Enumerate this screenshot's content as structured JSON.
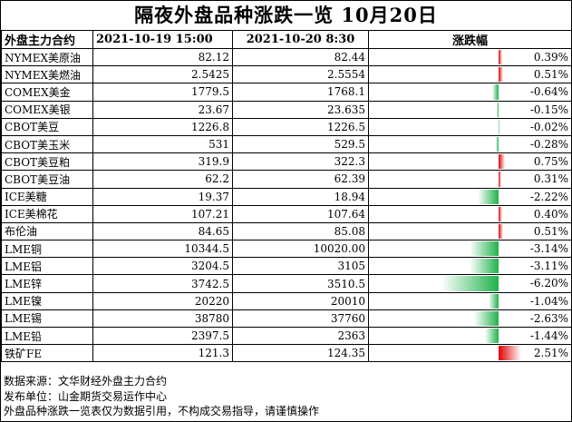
{
  "title": "隔夜外盘品种涨跌一览 10月20日",
  "header": {
    "col_name": "外盘主力合约",
    "col_prev": "2021-10-19 15:00",
    "col_curr": "2021-10-20 8:30",
    "col_change": "涨跌幅"
  },
  "rows": [
    {
      "name": "NYMEX美原油",
      "prev": "82.12",
      "curr": "82.44",
      "change": "0.39%",
      "value": 0.39
    },
    {
      "name": "NYMEX美燃油",
      "prev": "2.5425",
      "curr": "2.5554",
      "change": "0.51%",
      "value": 0.51
    },
    {
      "name": "COMEX美金",
      "prev": "1779.5",
      "curr": "1768.1",
      "change": "-0.64%",
      "value": -0.64
    },
    {
      "name": "COMEX美银",
      "prev": "23.67",
      "curr": "23.635",
      "change": "-0.15%",
      "value": -0.15
    },
    {
      "name": "CBOT美豆",
      "prev": "1226.8",
      "curr": "1226.5",
      "change": "-0.02%",
      "value": -0.02
    },
    {
      "name": "CBOT美玉米",
      "prev": "531",
      "curr": "529.5",
      "change": "-0.28%",
      "value": -0.28
    },
    {
      "name": "CBOT美豆粕",
      "prev": "319.9",
      "curr": "322.3",
      "change": "0.75%",
      "value": 0.75
    },
    {
      "name": "CBOT美豆油",
      "prev": "62.2",
      "curr": "62.39",
      "change": "0.31%",
      "value": 0.31
    },
    {
      "name": "ICE美糖",
      "prev": "19.37",
      "curr": "18.94",
      "change": "-2.22%",
      "value": -2.22
    },
    {
      "name": "ICE美棉花",
      "prev": "107.21",
      "curr": "107.64",
      "change": "0.40%",
      "value": 0.4
    },
    {
      "name": "布伦油",
      "prev": "84.65",
      "curr": "85.08",
      "change": "0.51%",
      "value": 0.51
    },
    {
      "name": "LME铜",
      "prev": "10344.5",
      "curr": "10020.00",
      "change": "-3.14%",
      "value": -3.14
    },
    {
      "name": "LME铝",
      "prev": "3204.5",
      "curr": "3105",
      "change": "-3.11%",
      "value": -3.11
    },
    {
      "name": "LME锌",
      "prev": "3742.5",
      "curr": "3510.5",
      "change": "-6.20%",
      "value": -6.2
    },
    {
      "name": "LME镍",
      "prev": "20220",
      "curr": "20010",
      "change": "-1.04%",
      "value": -1.04
    },
    {
      "name": "LME锡",
      "prev": "38780",
      "curr": "37760",
      "change": "-2.63%",
      "value": -2.63
    },
    {
      "name": "LME铅",
      "prev": "2397.5",
      "curr": "2363",
      "change": "-1.44%",
      "value": -1.44
    },
    {
      "name": "铁矿FE",
      "prev": "121.3",
      "curr": "124.35",
      "change": "2.51%",
      "value": 2.51
    }
  ],
  "notes": [
    "数据来源：文华财经外盘主力合约",
    "发布单位：山金期货交易运作中心",
    "外盘品种涨跌一览表仅为数据引用，不构成交易指导，请谨慎操作"
  ],
  "colors": {
    "positive": "#e00000",
    "negative": "#1fb24a"
  }
}
